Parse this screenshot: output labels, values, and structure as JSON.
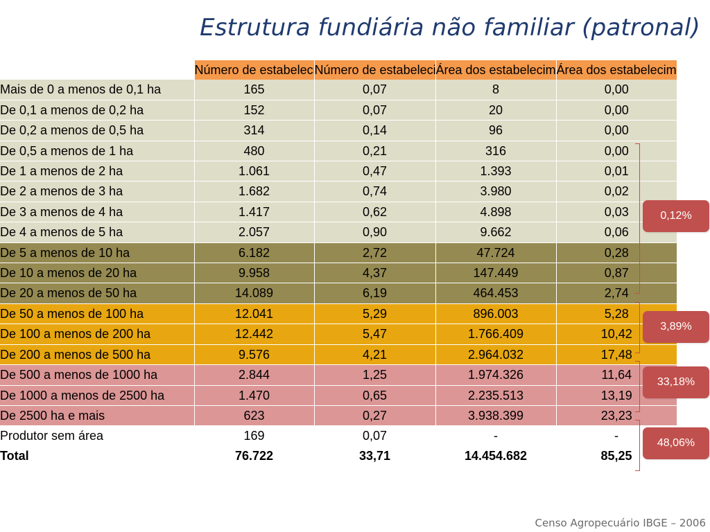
{
  "title": "Estrutura fundiária não familiar (patronal)",
  "columns": [
    "Número de estabelecimentos agropecuários (Unidades)",
    "Número de estabelecimentos agropecuários (Percentual)",
    "Área dos estabelecimentos agropecuários (Hectares)",
    "Área dos estabelecimentos agropecuários (Percentual)"
  ],
  "rows": [
    {
      "label": "Mais de 0 a menos de 0,1 ha",
      "values": [
        "165",
        "0,07",
        "8",
        "0,00"
      ],
      "group": "g1"
    },
    {
      "label": "De 0,1 a menos de 0,2 ha",
      "values": [
        "152",
        "0,07",
        "20",
        "0,00"
      ],
      "group": "g1"
    },
    {
      "label": "De 0,2 a menos de 0,5 ha",
      "values": [
        "314",
        "0,14",
        "96",
        "0,00"
      ],
      "group": "g1"
    },
    {
      "label": "De 0,5 a menos de 1 ha",
      "values": [
        "480",
        "0,21",
        "316",
        "0,00"
      ],
      "group": "g1"
    },
    {
      "label": "De 1 a menos de 2 ha",
      "values": [
        "1.061",
        "0,47",
        "1.393",
        "0,01"
      ],
      "group": "g1"
    },
    {
      "label": "De 2 a menos de 3 ha",
      "values": [
        "1.682",
        "0,74",
        "3.980",
        "0,02"
      ],
      "group": "g1"
    },
    {
      "label": "De 3 a menos de 4 ha",
      "values": [
        "1.417",
        "0,62",
        "4.898",
        "0,03"
      ],
      "group": "g1"
    },
    {
      "label": "De 4 a menos de 5 ha",
      "values": [
        "2.057",
        "0,90",
        "9.662",
        "0,06"
      ],
      "group": "g1"
    },
    {
      "label": "De 5 a menos de 10 ha",
      "values": [
        "6.182",
        "2,72",
        "47.724",
        "0,28"
      ],
      "group": "g2"
    },
    {
      "label": "De 10 a menos de 20 ha",
      "values": [
        "9.958",
        "4,37",
        "147.449",
        "0,87"
      ],
      "group": "g2"
    },
    {
      "label": "De 20 a menos de 50 ha",
      "values": [
        "14.089",
        "6,19",
        "464.453",
        "2,74"
      ],
      "group": "g2"
    },
    {
      "label": "De 50 a menos de 100 ha",
      "values": [
        "12.041",
        "5,29",
        "896.003",
        "5,28"
      ],
      "group": "g3"
    },
    {
      "label": "De 100 a menos de 200 ha",
      "values": [
        "12.442",
        "5,47",
        "1.766.409",
        "10,42"
      ],
      "group": "g3"
    },
    {
      "label": "De 200 a menos de 500 ha",
      "values": [
        "9.576",
        "4,21",
        "2.964.032",
        "17,48"
      ],
      "group": "g3"
    },
    {
      "label": "De 500 a menos de 1000 ha",
      "values": [
        "2.844",
        "1,25",
        "1.974.326",
        "11,64"
      ],
      "group": "g4"
    },
    {
      "label": "De 1000 a menos de 2500 ha",
      "values": [
        "1.470",
        "0,65",
        "2.235.513",
        "13,19"
      ],
      "group": "g4"
    },
    {
      "label": "De 2500 ha e mais",
      "values": [
        "623",
        "0,27",
        "3.938.399",
        "23,23"
      ],
      "group": "g4"
    },
    {
      "label": "Produtor sem área",
      "values": [
        "169",
        "0,07",
        "-",
        "-"
      ],
      "group": "g0"
    },
    {
      "label": "Total",
      "values": [
        "76.722",
        "33,71",
        "14.454.682",
        "85,25"
      ],
      "group": "total"
    }
  ],
  "group_badges": [
    "0,12%",
    "3,89%",
    "33,18%",
    "48,06%"
  ],
  "colors": {
    "header": "#f5994b",
    "group1": "#deddc8",
    "group2": "#958a52",
    "group3": "#e8a710",
    "group4": "#dc9696",
    "badge": "#c0504d",
    "title": "#1f3a6e"
  },
  "source": "Censo Agropecuário IBGE – 2006"
}
